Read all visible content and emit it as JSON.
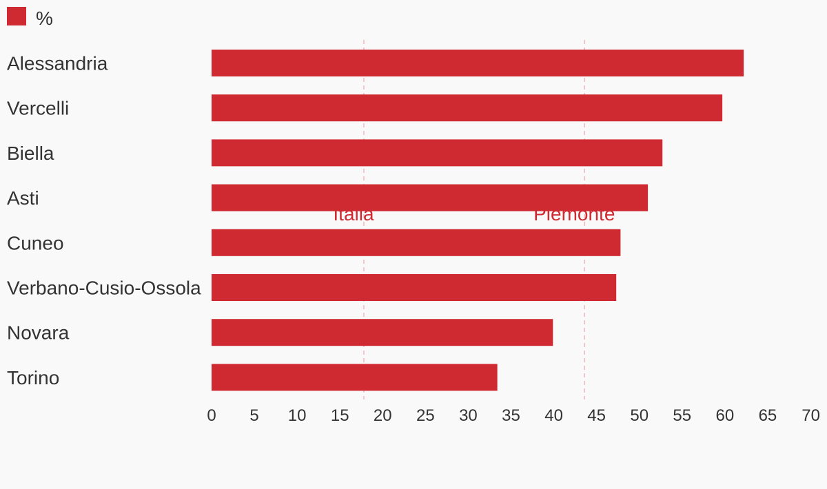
{
  "chart_data": {
    "type": "bar",
    "orientation": "horizontal",
    "categories": [
      "Alessandria",
      "Vercelli",
      "Biella",
      "Asti",
      "Cuneo",
      "Verbano-Cusio-Ossola",
      "Novara",
      "Torino"
    ],
    "series": [
      {
        "name": "%",
        "color": "#cf2a31",
        "values": [
          62.2,
          59.7,
          52.7,
          51.0,
          47.8,
          47.3,
          39.9,
          33.4
        ]
      }
    ],
    "reference_lines": [
      {
        "label": "Italia",
        "value": 17.8,
        "color": "#cf2a31"
      },
      {
        "label": "Piemonte",
        "value": 43.6,
        "color": "#cf2a31"
      }
    ],
    "xlim": [
      0,
      70
    ],
    "xticks": [
      "0",
      "5",
      "10",
      "15",
      "20",
      "25",
      "30",
      "35",
      "40",
      "45",
      "50",
      "55",
      "60",
      "65",
      "70"
    ],
    "grid": false,
    "legend": {
      "position": "top-left",
      "label": "%"
    }
  }
}
